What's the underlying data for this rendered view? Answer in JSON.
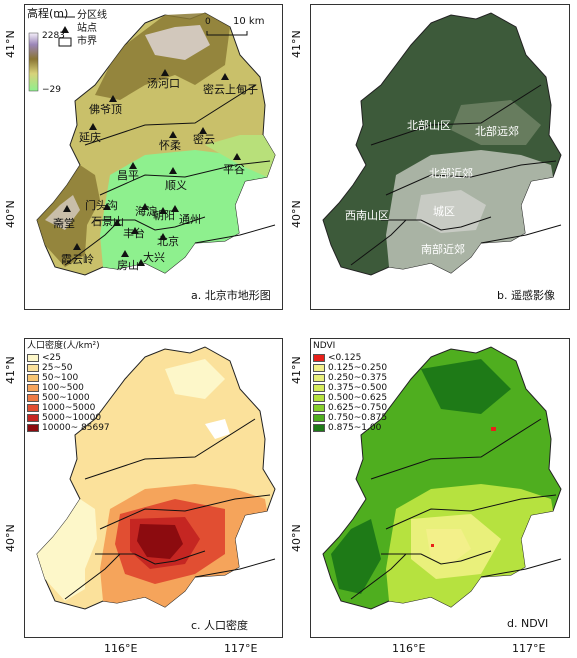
{
  "panel_a": {
    "caption": "a. 北京市地形图",
    "legend_title": "高程(m)",
    "elev_max": "2283",
    "elev_min": "−29",
    "legend_line": "分区线",
    "legend_station": "站点",
    "legend_boundary": "市界",
    "scale_zero": "0",
    "scale_ten": "10 km",
    "lat_top": "41°N",
    "lat_bottom": "40°N",
    "labels": {
      "tanghekou": "汤河口",
      "shangdianzi": "密云上甸子",
      "foyeding": "佛爷顶",
      "yanqing": "延庆",
      "huairou": "怀柔",
      "miyun": "密云",
      "changping": "昌平",
      "pinggu": "平谷",
      "shunyi": "顺义",
      "mentougou": "门头沟",
      "haidian": "海淀",
      "zhaitang": "斋堂",
      "shijingshan": "石景山",
      "chaoyang": "朝阳",
      "tongzhou": "通州",
      "fengtai": "丰台",
      "beijing": "北京",
      "daxing": "大兴",
      "fangshan": "房山",
      "xiayunling": "霞云岭"
    }
  },
  "panel_b": {
    "caption": "b. 遥感影像",
    "lat_top": "41°N",
    "lat_bottom": "40°N",
    "zones": {
      "north_mountain": "北部山区",
      "north_suburb_far": "北部远郊",
      "north_suburb_near": "北部近郊",
      "urban": "城区",
      "south_mountain": "西南山区",
      "south_suburb": "南部近郊"
    }
  },
  "panel_c": {
    "caption": "c. 人口密度",
    "legend_title": "人口密度(人/km²)",
    "lat_top": "41°N",
    "lat_bottom": "40°N",
    "lon_labels": [
      "116°E",
      "117°E"
    ],
    "legend": [
      {
        "label": "<25",
        "color": "#fdf7c9"
      },
      {
        "label": "25~50",
        "color": "#fbe19b"
      },
      {
        "label": "50~100",
        "color": "#f8c673"
      },
      {
        "label": "100~500",
        "color": "#f5a45b"
      },
      {
        "label": "500~1000",
        "color": "#ee7b45"
      },
      {
        "label": "1000~5000",
        "color": "#e14e32"
      },
      {
        "label": "5000~10000",
        "color": "#c52622"
      },
      {
        "label": "10000~ 85697",
        "color": "#8c0b0f"
      }
    ]
  },
  "panel_d": {
    "caption": "d. NDVI",
    "legend_title": "NDVI",
    "lat_top": "41°N",
    "lat_bottom": "40°N",
    "lon_labels": [
      "116°E",
      "117°E"
    ],
    "legend": [
      {
        "label": "<0.125",
        "color": "#e8201a"
      },
      {
        "label": "0.125~0.250",
        "color": "#f3f08a"
      },
      {
        "label": "0.250~0.375",
        "color": "#e9f07b"
      },
      {
        "label": "0.375~0.500",
        "color": "#d6ec5b"
      },
      {
        "label": "0.500~0.625",
        "color": "#b6e23f"
      },
      {
        "label": "0.625~0.750",
        "color": "#86cf2d"
      },
      {
        "label": "0.750~0.875",
        "color": "#4fae1f"
      },
      {
        "label": "0.875~1.00",
        "color": "#1e7a17"
      }
    ]
  },
  "colors": {
    "plain": "#8ef08e",
    "midland": "#d9d27a",
    "hills": "#9c8a40",
    "peaks": "#e8e0f0",
    "satellite_dark": "#3d5a3a",
    "satellite_light": "#a9b3a4"
  }
}
